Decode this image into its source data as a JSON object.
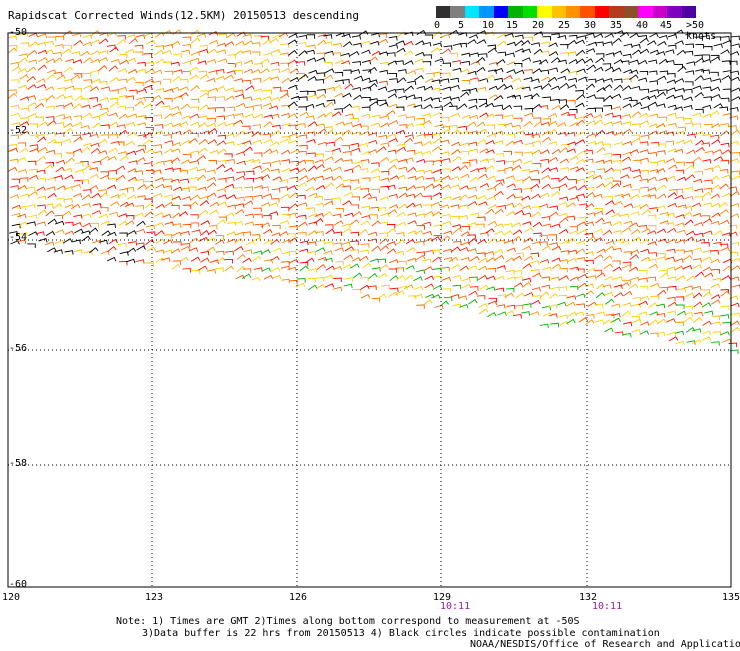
{
  "header": {
    "title": "Rapidscat Corrected Winds(12.5KM) 20150513 descending"
  },
  "legend": {
    "labels": [
      "0",
      "5",
      "10",
      "15",
      "20",
      "25",
      "30",
      "35",
      "40",
      "45",
      ">50 knots"
    ],
    "colors": [
      "#303030",
      "#7f7f7f",
      "#00e5ff",
      "#0096ff",
      "#0000ff",
      "#00b400",
      "#00e000",
      "#ffff00",
      "#ffc000",
      "#ff9000",
      "#ff5000",
      "#ff0000",
      "#b43c1e",
      "#8c5028",
      "#ff00ff",
      "#c800c8",
      "#8000c0",
      "#5000a0"
    ]
  },
  "axes": {
    "lat_labels": [
      "-50",
      "-52",
      "-54",
      "-56",
      "-58",
      "-60"
    ],
    "lon_labels": [
      "120",
      "123",
      "126",
      "129",
      "132",
      "135"
    ]
  },
  "times": [
    "10:11",
    "10:11"
  ],
  "notes": {
    "line1": "Note: 1) Times are GMT 2)Times along bottom correspond to measurement at -50S",
    "line2": "3)Data buffer is 22 hrs from 20150513 4) Black circles indicate possible contamination",
    "credit": "NOAA/NESDIS/Office of Research and Applications"
  }
}
